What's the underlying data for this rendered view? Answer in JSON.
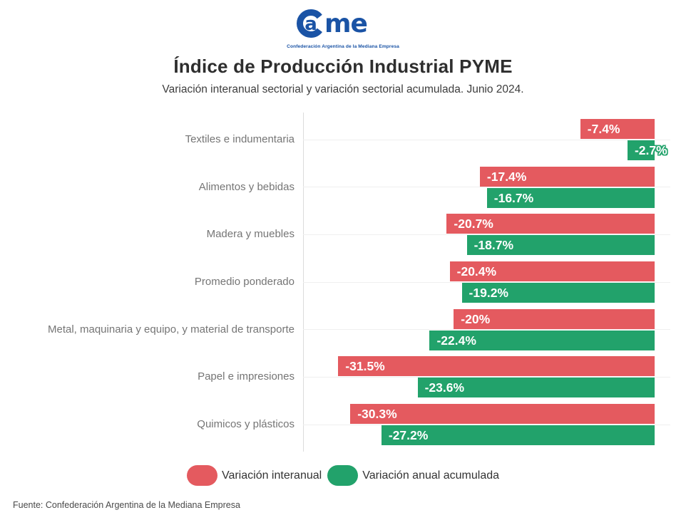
{
  "logo": {
    "c_letter": "a",
    "rest": "me",
    "tagline": "Confederación Argentina de la Mediana Empresa",
    "color": "#1a53a5"
  },
  "header": {
    "title": "Índice de Producción Industrial PYME",
    "subtitle": "Variación interanual sectorial y variación sectorial acumulada. Junio 2024."
  },
  "chart_data": {
    "type": "bar",
    "orientation": "horizontal",
    "title": "Índice de Producción Industrial PYME",
    "subtitle": "Variación interanual sectorial y variación sectorial acumulada. Junio 2024.",
    "xlim": [
      -35,
      0
    ],
    "bars_anchored_at": "right",
    "grid": "one horizontal line per category",
    "legend_position": "bottom",
    "categories": [
      "Textiles e indumentaria",
      "Alimentos y bebidas",
      "Madera y muebles",
      "Promedio ponderado",
      "Metal, maquinaria y equipo, y material de transporte",
      "Papel e impresiones",
      "Quimicos y plásticos"
    ],
    "series": [
      {
        "name": "Variación interanual",
        "color": "#e45a5f",
        "values": [
          -7.4,
          -17.4,
          -20.7,
          -20.4,
          -20,
          -31.5,
          -30.3
        ],
        "labels": [
          "-7.4%",
          "-17.4%",
          "-20.7%",
          "-20.4%",
          "-20%",
          "-31.5%",
          "-30.3%"
        ]
      },
      {
        "name": "Variación anual acumulada",
        "color": "#22a26b",
        "values": [
          -2.7,
          -16.7,
          -18.7,
          -19.2,
          -22.4,
          -23.6,
          -27.2
        ],
        "labels": [
          "-2.7%",
          "-16.7%",
          "-18.7%",
          "-19.2%",
          "-22.4%",
          "-23.6%",
          "-27.2%"
        ]
      }
    ]
  },
  "legend": {
    "items": [
      {
        "label": "Variación interanual",
        "color": "#e45a5f"
      },
      {
        "label": "Variación anual acumulada",
        "color": "#22a26b"
      }
    ]
  },
  "footer": {
    "source": "Fuente: Confederación Argentina de la Mediana Empresa"
  }
}
